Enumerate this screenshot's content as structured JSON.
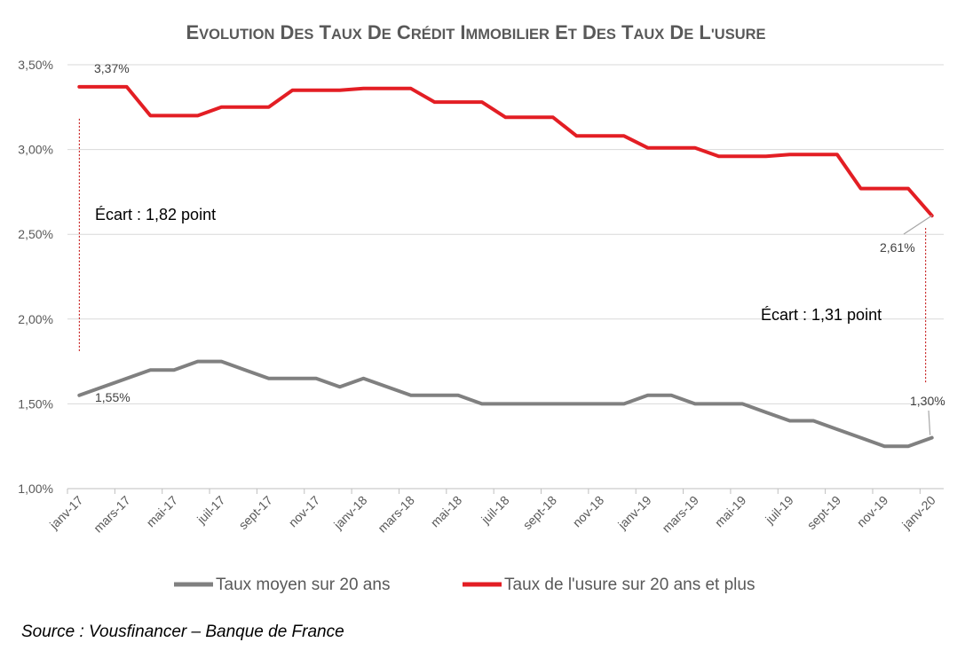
{
  "chart_data": {
    "type": "line",
    "title": "Evolution des taux de crédit immobilier et des taux de l'usure",
    "x": [
      "janv-17",
      "févr-17",
      "mars-17",
      "avr-17",
      "mai-17",
      "juin-17",
      "juil-17",
      "août-17",
      "sept-17",
      "oct-17",
      "nov-17",
      "déc-17",
      "janv-18",
      "févr-18",
      "mars-18",
      "avr-18",
      "mai-18",
      "juin-18",
      "juil-18",
      "août-18",
      "sept-18",
      "oct-18",
      "nov-18",
      "déc-18",
      "janv-19",
      "févr-19",
      "mars-19",
      "avr-19",
      "mai-19",
      "juin-19",
      "juil-19",
      "août-19",
      "sept-19",
      "oct-19",
      "nov-19",
      "déc-19",
      "janv-20"
    ],
    "x_tick_labels": [
      "janv-17",
      "mars-17",
      "mai-17",
      "juil-17",
      "sept-17",
      "nov-17",
      "janv-18",
      "mars-18",
      "mai-18",
      "juil-18",
      "sept-18",
      "nov-18",
      "janv-19",
      "mars-19",
      "mai-19",
      "juil-19",
      "sept-19",
      "nov-19",
      "janv-20"
    ],
    "y_tick_labels": [
      "1,00%",
      "1,50%",
      "2,00%",
      "2,50%",
      "3,00%",
      "3,50%"
    ],
    "ylim": [
      1.0,
      3.5
    ],
    "yticks": [
      1.0,
      1.5,
      2.0,
      2.5,
      3.0,
      3.5
    ],
    "grid": true,
    "legend_position": "bottom",
    "series": [
      {
        "name": "Taux moyen sur 20 ans",
        "color": "#808080",
        "values": [
          1.55,
          1.6,
          1.65,
          1.7,
          1.7,
          1.75,
          1.75,
          1.7,
          1.65,
          1.65,
          1.65,
          1.6,
          1.65,
          1.6,
          1.55,
          1.55,
          1.55,
          1.5,
          1.5,
          1.5,
          1.5,
          1.5,
          1.5,
          1.5,
          1.55,
          1.55,
          1.5,
          1.5,
          1.5,
          1.45,
          1.4,
          1.4,
          1.35,
          1.3,
          1.25,
          1.25,
          1.3
        ]
      },
      {
        "name": "Taux de l'usure sur 20 ans et plus",
        "color": "#E31E24",
        "values": [
          3.37,
          3.37,
          3.37,
          3.2,
          3.2,
          3.2,
          3.25,
          3.25,
          3.25,
          3.35,
          3.35,
          3.35,
          3.36,
          3.36,
          3.36,
          3.28,
          3.28,
          3.28,
          3.19,
          3.19,
          3.19,
          3.08,
          3.08,
          3.08,
          3.01,
          3.01,
          3.01,
          2.96,
          2.96,
          2.96,
          2.97,
          2.97,
          2.97,
          2.77,
          2.77,
          2.77,
          2.61
        ]
      }
    ],
    "data_labels": {
      "usure_start": "3,37%",
      "usure_end": "2,61%",
      "moyen_start": "1,55%",
      "moyen_end": "1,30%"
    },
    "annotations": {
      "gap_start": "Écart : 1,82 point",
      "gap_end": "Écart : 1,31 point"
    },
    "source": "Source : Vousfinancer – Banque de France"
  }
}
